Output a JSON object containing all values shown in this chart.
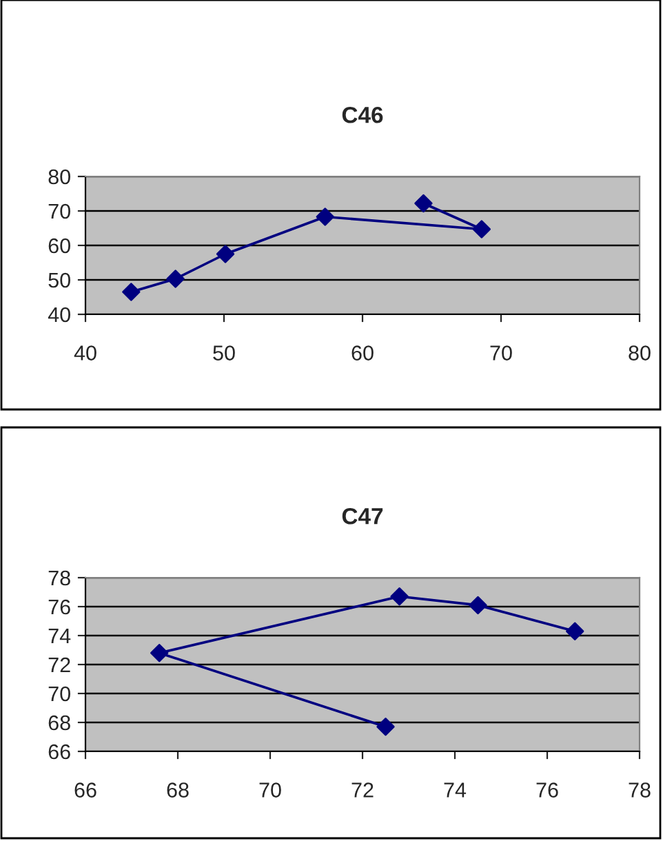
{
  "chart_data": [
    {
      "type": "line",
      "title": "C46",
      "xlim": [
        40,
        80
      ],
      "xticks": [
        40,
        50,
        60,
        70,
        80
      ],
      "ylim": [
        40,
        80
      ],
      "yticks": [
        40,
        50,
        60,
        70,
        80
      ],
      "grid": "y",
      "marker": "diamond",
      "line_style": "solid",
      "series": [
        {
          "color": "#000080",
          "x": [
            43.3,
            46.5,
            50.1,
            57.3,
            68.6,
            64.4
          ],
          "values": [
            46.5,
            50.3,
            57.5,
            68.3,
            64.7,
            72.2
          ]
        }
      ]
    },
    {
      "type": "line",
      "title": "C47",
      "xlim": [
        66,
        78
      ],
      "xticks": [
        66,
        68,
        70,
        72,
        74,
        76,
        78
      ],
      "ylim": [
        66,
        78
      ],
      "yticks": [
        66,
        68,
        70,
        72,
        74,
        76,
        78
      ],
      "grid": "y",
      "marker": "diamond",
      "line_style": "solid",
      "series": [
        {
          "color": "#000080",
          "x": [
            72.5,
            67.6,
            72.8,
            74.5,
            76.6
          ],
          "values": [
            67.7,
            72.8,
            76.7,
            76.1,
            74.3
          ]
        }
      ]
    }
  ]
}
